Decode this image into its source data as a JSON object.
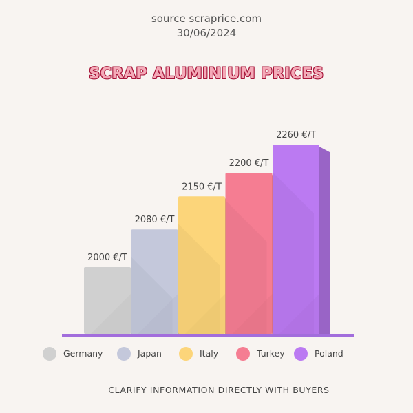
{
  "header": {
    "source": "source scraprice.com",
    "date": "30/06/2024"
  },
  "footer": {
    "note": "CLARIFY INFORMATION DIRECTLY WITH BUYERS"
  },
  "chart_data": {
    "type": "bar",
    "title": "SCRAP ALUMINIUM PRICES",
    "categories": [
      "Germany",
      "Japan",
      "Italy",
      "Turkey",
      "Poland"
    ],
    "values": [
      2000,
      2080,
      2150,
      2200,
      2260
    ],
    "value_labels": [
      "2000 €/T",
      "2080 €/T",
      "2150 €/T",
      "2200 €/T",
      "2260 €/T"
    ],
    "colors": [
      "#d0d0d0",
      "#c4c8db",
      "#fcd57a",
      "#f57d92",
      "#bb7af2"
    ],
    "legend_position": "bottom",
    "grid": false
  }
}
